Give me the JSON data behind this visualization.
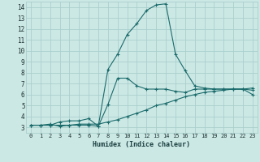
{
  "title": "",
  "xlabel": "Humidex (Indice chaleur)",
  "ylabel": "",
  "bg_color": "#cce8e5",
  "grid_color": "#aacfcc",
  "line_color": "#1a6b6b",
  "xlim": [
    -0.5,
    23.5
  ],
  "ylim": [
    2.5,
    14.5
  ],
  "xticks": [
    0,
    1,
    2,
    3,
    4,
    5,
    6,
    7,
    8,
    9,
    10,
    11,
    12,
    13,
    14,
    15,
    16,
    17,
    18,
    19,
    20,
    21,
    22,
    23
  ],
  "yticks": [
    3,
    4,
    5,
    6,
    7,
    8,
    9,
    10,
    11,
    12,
    13,
    14
  ],
  "series1_x": [
    0,
    1,
    2,
    3,
    4,
    5,
    6,
    7,
    8,
    9,
    10,
    11,
    12,
    13,
    14,
    15,
    16,
    17,
    18,
    19,
    20,
    21,
    22,
    23
  ],
  "series1_y": [
    3.2,
    3.2,
    3.3,
    3.1,
    3.2,
    3.2,
    3.2,
    3.1,
    8.3,
    9.7,
    11.5,
    12.5,
    13.7,
    14.2,
    14.3,
    9.7,
    8.2,
    6.8,
    6.6,
    6.5,
    6.5,
    6.5,
    6.5,
    6.4
  ],
  "series2_x": [
    0,
    1,
    2,
    3,
    4,
    5,
    6,
    7,
    8,
    9,
    10,
    11,
    12,
    13,
    14,
    15,
    16,
    17,
    18,
    19,
    20,
    21,
    22,
    23
  ],
  "series2_y": [
    3.2,
    3.2,
    3.2,
    3.2,
    3.2,
    3.3,
    3.3,
    3.3,
    3.5,
    3.7,
    4.0,
    4.3,
    4.6,
    5.0,
    5.2,
    5.5,
    5.8,
    6.0,
    6.2,
    6.3,
    6.4,
    6.5,
    6.5,
    6.6
  ],
  "series3_x": [
    0,
    1,
    2,
    3,
    4,
    5,
    6,
    7,
    8,
    9,
    10,
    11,
    12,
    13,
    14,
    15,
    16,
    17,
    18,
    19,
    20,
    21,
    22,
    23
  ],
  "series3_y": [
    3.2,
    3.2,
    3.2,
    3.5,
    3.6,
    3.6,
    3.8,
    3.1,
    5.1,
    7.5,
    7.5,
    6.8,
    6.5,
    6.5,
    6.5,
    6.3,
    6.2,
    6.5,
    6.5,
    6.5,
    6.5,
    6.5,
    6.5,
    6.0
  ]
}
